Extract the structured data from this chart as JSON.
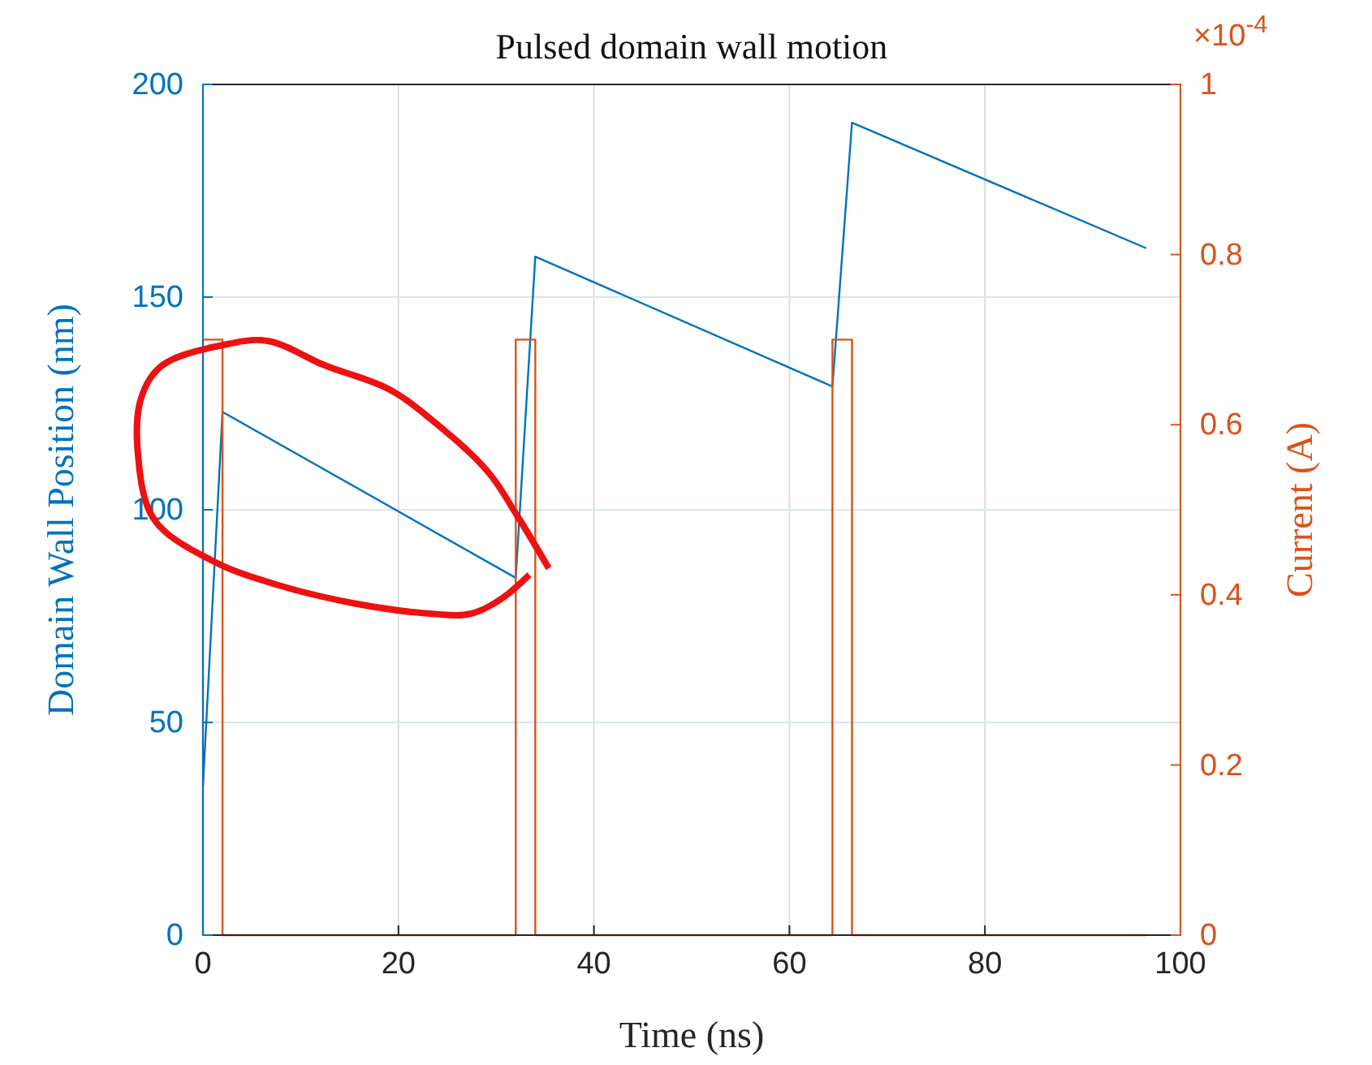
{
  "chart_data": {
    "type": "line",
    "title": "Pulsed domain wall motion",
    "xlabel": "Time (ns)",
    "ylabel": "Domain Wall Position (nm)",
    "y2label": "Current (A)",
    "xlim": [
      0,
      100
    ],
    "xticks": [
      0,
      20,
      40,
      60,
      80,
      100
    ],
    "ylim": [
      0,
      200
    ],
    "yticks": [
      0,
      50,
      100,
      150,
      200
    ],
    "y2lim": [
      0,
      1
    ],
    "y2ticks": [
      0,
      0.2,
      0.4,
      0.6,
      0.8,
      1
    ],
    "grid": true,
    "annotations": [
      "×10$^{-4}$"
    ],
    "series": [
      {
        "color": "#0072bd",
        "x": [
          0,
          2,
          32,
          34,
          64.4,
          66.4,
          96.5
        ],
        "values": [
          35,
          123,
          84,
          159.5,
          129,
          191,
          161.5
        ]
      },
      {
        "axis": "y2",
        "color": "#d95319",
        "x": [
          0,
          0,
          2,
          2,
          32,
          32,
          34,
          34,
          64.4,
          64.4,
          66.4,
          66.4,
          96.5
        ],
        "values": [
          0,
          0.7,
          0.7,
          0,
          0,
          0.7,
          0.7,
          0,
          0,
          0.7,
          0.7,
          0,
          0
        ]
      }
    ]
  }
}
